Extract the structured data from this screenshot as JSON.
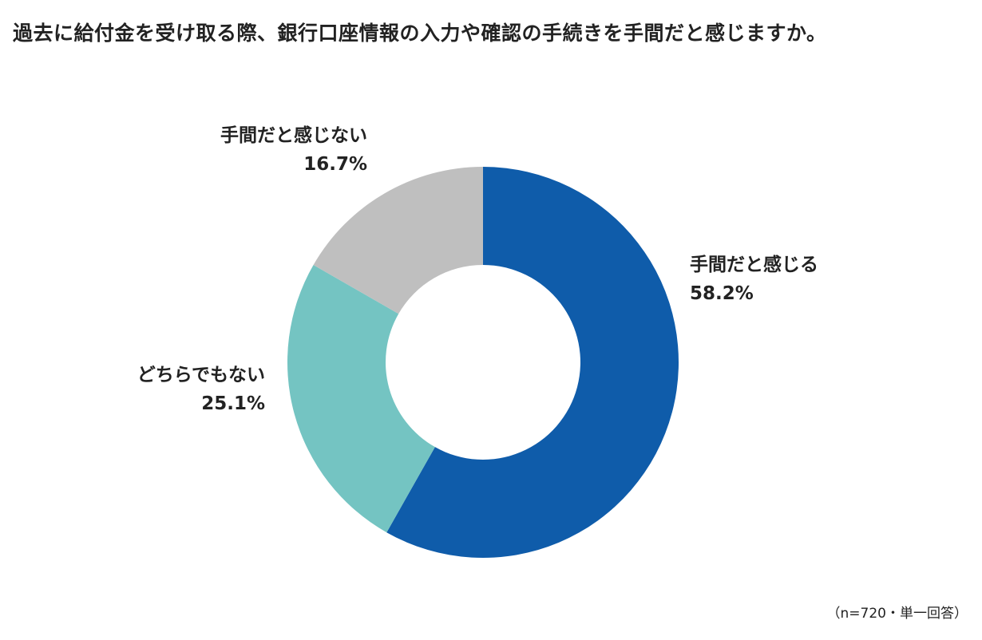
{
  "chart_data": {
    "type": "donut",
    "title": "過去に給付金を受け取る際、銀行口座情報の入力や確認の手続きを手間だと感じますか。",
    "series": [
      {
        "name": "手間だと感じる",
        "value": 58.2,
        "label": "58.2%",
        "color": "#0f5caa"
      },
      {
        "name": "どちらでもない",
        "value": 25.1,
        "label": "25.1%",
        "color": "#74c4c2"
      },
      {
        "name": "手間だと感じない",
        "value": 16.7,
        "label": "16.7%",
        "color": "#bfbfbf"
      }
    ],
    "note": "（n=720・単一回答）"
  }
}
